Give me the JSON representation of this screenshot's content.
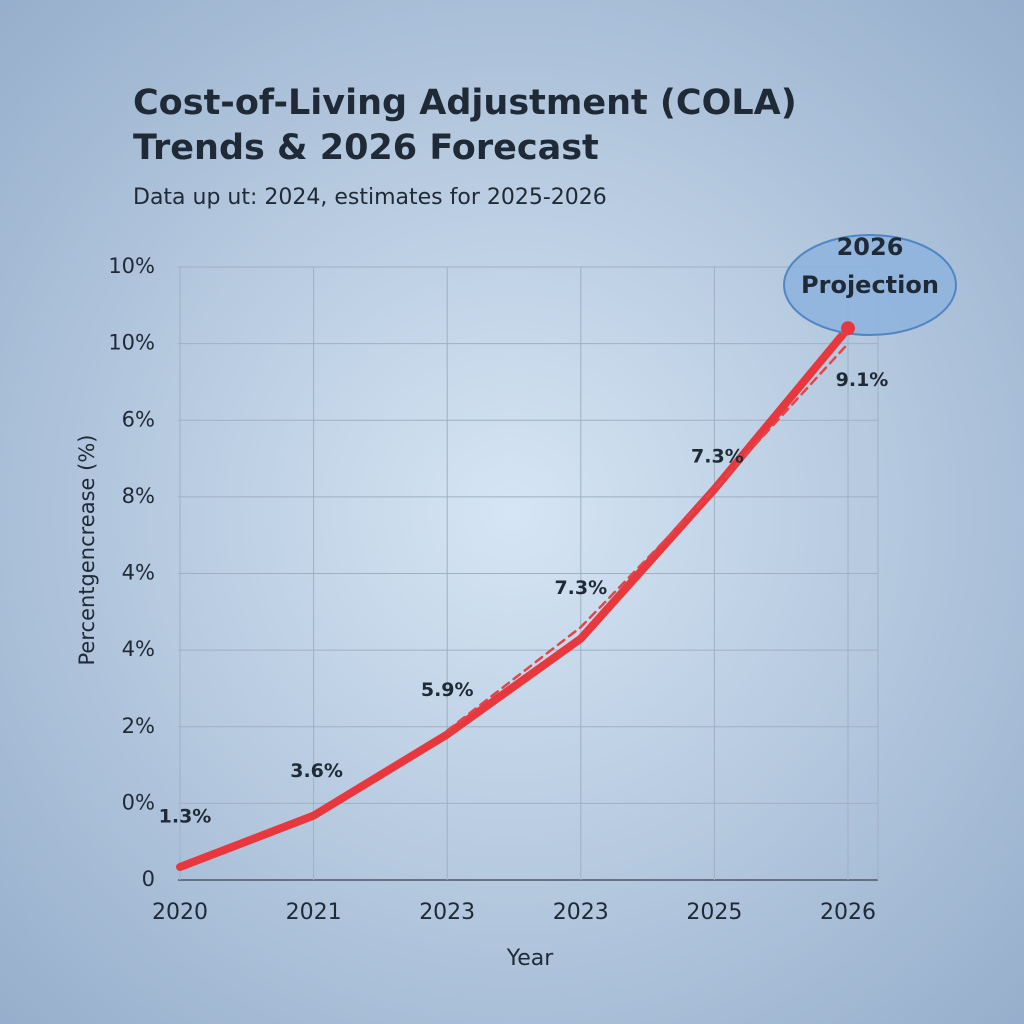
{
  "chart_data": {
    "type": "line",
    "title": [
      "Cost-of-Living Adjustment (COLA)",
      "Trends & 2026 Forecast"
    ],
    "subtitle": "Data up ut: 2024, estimates for 2025-2026",
    "x_label": "Year",
    "y_label": "Percentgencrease (%)",
    "categories": [
      "2020",
      "2021",
      "2023",
      "2023",
      "2025",
      "2026"
    ],
    "series": [
      {
        "color": "#e8383d",
        "style": "solid",
        "values": [
          0.17,
          0.84,
          1.9,
          3.15,
          5.1,
          7.2
        ]
      },
      {
        "color": "#e0474c",
        "style": "dashed",
        "values": [
          null,
          null,
          1.95,
          3.3,
          5.1,
          7.0
        ]
      }
    ],
    "annotations": [
      "1.3%",
      "3.6%",
      "5.9%",
      "7.3%",
      "7.3%",
      "9.1%"
    ],
    "callout": [
      "2026",
      "Projection"
    ],
    "ylim": [
      0,
      8
    ],
    "yticks": [
      0,
      {
        "value": 1,
        "label": "0%"
      },
      {
        "value": 2,
        "label": "2%"
      },
      {
        "value": 3,
        "label": "4%"
      },
      {
        "value": 4,
        "label": "4%"
      },
      {
        "value": 5,
        "label": "8%"
      },
      {
        "value": 6,
        "label": "6%"
      },
      {
        "value": 7,
        "label": "10%"
      },
      {
        "value": 8,
        "label": "10%"
      }
    ],
    "grid": true
  }
}
